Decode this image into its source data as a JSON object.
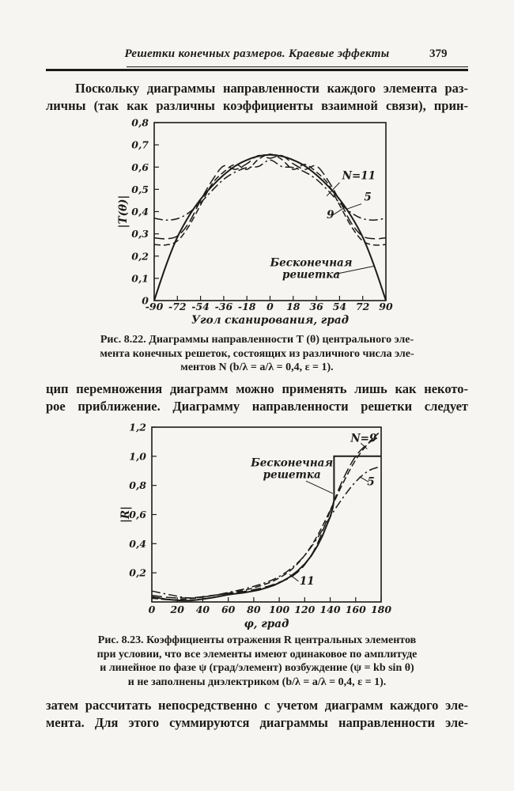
{
  "page": {
    "header": {
      "title": "Решетки конечных размеров. Краевые эффекты",
      "page_number": "379"
    },
    "paragraphs": {
      "p1": [
        "Поскольку диаграммы направленности каждого элемента раз-",
        "личны (так как различны коэффициенты взаимной связи), прин-"
      ],
      "p2": [
        "цип перемножения диаграмм можно применять лишь как некото-",
        "рое приближение. Диаграмму направленности решетки следует"
      ],
      "p3": [
        "затем рассчитать непосредственно с учетом диаграмм каждого эле-",
        "мента. Для этого суммируются диаграммы направленности эле-"
      ]
    },
    "captions": {
      "fig822": [
        "Рис. 8.22. Диаграммы направленности Т (θ) центрального эле-",
        "мента конечных решеток, состоящих из различного числа эле-",
        "ментов N (b/λ = a/λ = 0,4,  ε = 1)."
      ],
      "fig823": [
        "Рис. 8.23. Коэффициенты отражения R центральных элементов",
        "при условии, что все элементы имеют одинаковое по амплитуде",
        "и линейное по фазе ψ (град/элемент) возбуждение (ψ = kb sin θ)",
        "и не заполнены диэлектриком (b/λ = a/λ = 0,4,  ε = 1)."
      ]
    },
    "colors": {
      "ink": "#1d1b18",
      "paper": "#f6f5f1"
    }
  },
  "chart_data": [
    {
      "type": "line",
      "title": "Диаграммы направленности T(θ) центрального элемента (Рис. 8.22)",
      "xlabel": "Угол сканирования, град",
      "ylabel": "|T(θ)|",
      "xlim": [
        -90,
        90
      ],
      "ylim": [
        0,
        0.8
      ],
      "grid": false,
      "legend_position": "inline-labels",
      "x_ticks": [
        {
          "v": -90,
          "label": "-90"
        },
        {
          "v": -72,
          "label": "-72"
        },
        {
          "v": -54,
          "label": "-54"
        },
        {
          "v": -36,
          "label": "-36"
        },
        {
          "v": -18,
          "label": "-18"
        },
        {
          "v": 0,
          "label": "0"
        },
        {
          "v": 18,
          "label": "18"
        },
        {
          "v": 36,
          "label": "36"
        },
        {
          "v": 54,
          "label": "54"
        },
        {
          "v": 72,
          "label": "72"
        },
        {
          "v": 90,
          "label": "90"
        }
      ],
      "y_ticks": [
        {
          "v": 0,
          "label": "0"
        },
        {
          "v": 0.1,
          "label": "0,1"
        },
        {
          "v": 0.2,
          "label": "0,2"
        },
        {
          "v": 0.3,
          "label": "0,3"
        },
        {
          "v": 0.4,
          "label": "0,4"
        },
        {
          "v": 0.5,
          "label": "0,5"
        },
        {
          "v": 0.6,
          "label": "0,6"
        },
        {
          "v": 0.7,
          "label": "0,7"
        },
        {
          "v": 0.8,
          "label": "0,8"
        }
      ],
      "series": [
        {
          "name": "Бесконечная решетка",
          "style": "solid",
          "smooth": true,
          "points": [
            [
              -90,
              0
            ],
            [
              -81,
              0.155
            ],
            [
              -72,
              0.285
            ],
            [
              -63,
              0.38
            ],
            [
              -54,
              0.455
            ],
            [
              -45,
              0.515
            ],
            [
              -36,
              0.565
            ],
            [
              -27,
              0.605
            ],
            [
              -18,
              0.632
            ],
            [
              -9,
              0.649
            ],
            [
              0,
              0.655
            ],
            [
              9,
              0.649
            ],
            [
              18,
              0.632
            ],
            [
              27,
              0.605
            ],
            [
              36,
              0.565
            ],
            [
              45,
              0.515
            ],
            [
              54,
              0.455
            ],
            [
              63,
              0.38
            ],
            [
              72,
              0.285
            ],
            [
              81,
              0.155
            ],
            [
              90,
              0
            ]
          ]
        },
        {
          "name": "N=5",
          "style": "dashdot",
          "smooth": true,
          "points": [
            [
              -90,
              0.37
            ],
            [
              -81,
              0.362
            ],
            [
              -72,
              0.368
            ],
            [
              -63,
              0.395
            ],
            [
              -54,
              0.44
            ],
            [
              -45,
              0.495
            ],
            [
              -36,
              0.545
            ],
            [
              -27,
              0.578
            ],
            [
              -18,
              0.598
            ],
            [
              -9,
              0.603
            ],
            [
              0,
              0.632
            ],
            [
              9,
              0.603
            ],
            [
              18,
              0.598
            ],
            [
              27,
              0.578
            ],
            [
              36,
              0.545
            ],
            [
              45,
              0.495
            ],
            [
              54,
              0.44
            ],
            [
              63,
              0.395
            ],
            [
              72,
              0.368
            ],
            [
              81,
              0.362
            ],
            [
              90,
              0.37
            ]
          ]
        },
        {
          "name": "N=9",
          "style": "longdash",
          "smooth": true,
          "points": [
            [
              -90,
              0.282
            ],
            [
              -81,
              0.278
            ],
            [
              -72,
              0.29
            ],
            [
              -63,
              0.35
            ],
            [
              -54,
              0.45
            ],
            [
              -45,
              0.54
            ],
            [
              -36,
              0.605
            ],
            [
              -27,
              0.59
            ],
            [
              -18,
              0.615
            ],
            [
              -9,
              0.652
            ],
            [
              0,
              0.64
            ],
            [
              9,
              0.652
            ],
            [
              18,
              0.615
            ],
            [
              27,
              0.59
            ],
            [
              36,
              0.605
            ],
            [
              45,
              0.54
            ],
            [
              54,
              0.45
            ],
            [
              63,
              0.35
            ],
            [
              72,
              0.29
            ],
            [
              81,
              0.278
            ],
            [
              90,
              0.282
            ]
          ]
        },
        {
          "name": "N=11",
          "style": "dash",
          "smooth": true,
          "points": [
            [
              -90,
              0.252
            ],
            [
              -81,
              0.25
            ],
            [
              -72,
              0.268
            ],
            [
              -63,
              0.335
            ],
            [
              -54,
              0.43
            ],
            [
              -45,
              0.525
            ],
            [
              -36,
              0.578
            ],
            [
              -27,
              0.612
            ],
            [
              -18,
              0.59
            ],
            [
              -9,
              0.635
            ],
            [
              0,
              0.658
            ],
            [
              9,
              0.635
            ],
            [
              18,
              0.59
            ],
            [
              27,
              0.612
            ],
            [
              36,
              0.578
            ],
            [
              45,
              0.525
            ],
            [
              54,
              0.43
            ],
            [
              63,
              0.335
            ],
            [
              72,
              0.268
            ],
            [
              81,
              0.25
            ],
            [
              90,
              0.252
            ]
          ]
        }
      ],
      "annotations": [
        {
          "lines": [
            "N=11"
          ],
          "x": 56,
          "y": 0.545,
          "anchor": "start",
          "leader": [
            [
              54,
              0.53
            ],
            [
              44,
              0.47
            ]
          ]
        },
        {
          "lines": [
            "5"
          ],
          "x": 73,
          "y": 0.45,
          "anchor": "start",
          "leader": [
            [
              71,
              0.435
            ],
            [
              59,
              0.41
            ]
          ]
        },
        {
          "lines": [
            "9"
          ],
          "x": 44,
          "y": 0.37,
          "anchor": "start",
          "leader": [
            [
              48,
              0.382
            ],
            [
              57,
              0.415
            ]
          ]
        },
        {
          "lines": [
            "Бесконечная",
            "решетка"
          ],
          "x": 32,
          "y": 0.155,
          "anchor": "middle",
          "leader": [
            [
              50,
              0.118
            ],
            [
              81,
              0.155
            ]
          ]
        }
      ]
    },
    {
      "type": "line",
      "title": "Коэффициенты отражения R центральных элементов (Рис. 8.23)",
      "xlabel": "φ, град",
      "ylabel": "|R|",
      "xlim": [
        0,
        180
      ],
      "ylim": [
        0,
        1.2
      ],
      "grid": false,
      "legend_position": "inline-labels",
      "x_ticks": [
        {
          "v": 0,
          "label": "0"
        },
        {
          "v": 20,
          "label": "20"
        },
        {
          "v": 40,
          "label": "40"
        },
        {
          "v": 60,
          "label": "60"
        },
        {
          "v": 80,
          "label": "80"
        },
        {
          "v": 100,
          "label": "100"
        },
        {
          "v": 120,
          "label": "120"
        },
        {
          "v": 140,
          "label": "140"
        },
        {
          "v": 160,
          "label": "160"
        },
        {
          "v": 180,
          "label": "180"
        }
      ],
      "y_ticks": [
        {
          "v": 0.2,
          "label": "0,2"
        },
        {
          "v": 0.4,
          "label": "0,4"
        },
        {
          "v": 0.6,
          "label": "0,6"
        },
        {
          "v": 0.8,
          "label": "0,8"
        },
        {
          "v": 1.0,
          "label": "1,0"
        },
        {
          "v": 1.2,
          "label": "1,2"
        }
      ],
      "series": [
        {
          "name": "Бесконечная решетка",
          "style": "solid",
          "smooth": false,
          "points": [
            [
              0,
              0.035
            ],
            [
              6,
              0.026
            ],
            [
              12,
              0.018
            ],
            [
              18,
              0.013
            ],
            [
              24,
              0.01
            ],
            [
              30,
              0.01
            ],
            [
              36,
              0.015
            ],
            [
              42,
              0.022
            ],
            [
              48,
              0.03
            ],
            [
              54,
              0.04
            ],
            [
              60,
              0.05
            ],
            [
              66,
              0.057
            ],
            [
              72,
              0.063
            ],
            [
              78,
              0.072
            ],
            [
              84,
              0.082
            ],
            [
              90,
              0.098
            ],
            [
              96,
              0.115
            ],
            [
              102,
              0.14
            ],
            [
              108,
              0.17
            ],
            [
              114,
              0.21
            ],
            [
              120,
              0.26
            ],
            [
              125,
              0.315
            ],
            [
              130,
              0.385
            ],
            [
              134,
              0.455
            ],
            [
              137,
              0.52
            ],
            [
              140,
              0.585
            ],
            [
              142,
              0.645
            ],
            [
              143,
              0.7
            ],
            [
              143,
              1.0
            ],
            [
              180,
              1.0
            ]
          ]
        },
        {
          "name": "N=9",
          "style": "dash",
          "smooth": true,
          "points": [
            [
              0,
              0.025
            ],
            [
              15,
              0.015
            ],
            [
              30,
              0.022
            ],
            [
              45,
              0.04
            ],
            [
              60,
              0.06
            ],
            [
              75,
              0.085
            ],
            [
              90,
              0.125
            ],
            [
              100,
              0.165
            ],
            [
              110,
              0.225
            ],
            [
              120,
              0.32
            ],
            [
              130,
              0.455
            ],
            [
              140,
              0.63
            ],
            [
              150,
              0.815
            ],
            [
              160,
              0.975
            ],
            [
              170,
              1.09
            ],
            [
              178,
              1.16
            ]
          ]
        },
        {
          "name": "N=11",
          "style": "longdash",
          "smooth": true,
          "points": [
            [
              0,
              0.045
            ],
            [
              15,
              0.03
            ],
            [
              30,
              0.028
            ],
            [
              45,
              0.042
            ],
            [
              60,
              0.058
            ],
            [
              75,
              0.075
            ],
            [
              90,
              0.105
            ],
            [
              100,
              0.135
            ],
            [
              110,
              0.175
            ],
            [
              120,
              0.255
            ],
            [
              130,
              0.4
            ],
            [
              140,
              0.625
            ],
            [
              150,
              0.84
            ],
            [
              160,
              1.0
            ],
            [
              170,
              1.09
            ],
            [
              178,
              1.13
            ]
          ]
        },
        {
          "name": "N=5",
          "style": "dashdot",
          "smooth": true,
          "points": [
            [
              0,
              0.075
            ],
            [
              15,
              0.048
            ],
            [
              30,
              0.027
            ],
            [
              45,
              0.04
            ],
            [
              60,
              0.065
            ],
            [
              75,
              0.095
            ],
            [
              90,
              0.135
            ],
            [
              100,
              0.175
            ],
            [
              110,
              0.235
            ],
            [
              120,
              0.32
            ],
            [
              130,
              0.44
            ],
            [
              140,
              0.585
            ],
            [
              150,
              0.715
            ],
            [
              160,
              0.825
            ],
            [
              170,
              0.9
            ],
            [
              180,
              0.93
            ]
          ]
        }
      ],
      "annotations": [
        {
          "lines": [
            "N=9"
          ],
          "x": 156,
          "y": 1.1,
          "anchor": "start",
          "leader": [
            [
              164,
              1.09
            ],
            [
              169,
              1.05
            ]
          ]
        },
        {
          "lines": [
            "Бесконечная",
            "решетка"
          ],
          "x": 110,
          "y": 0.93,
          "anchor": "middle",
          "leader": [
            [
              121,
              0.83
            ],
            [
              142,
              0.745
            ]
          ]
        },
        {
          "lines": [
            "5"
          ],
          "x": 172,
          "y": 0.8,
          "anchor": "middle",
          "leader": [
            [
              170,
              0.825
            ],
            [
              163,
              0.86
            ]
          ]
        },
        {
          "lines": [
            "11"
          ],
          "x": 116,
          "y": 0.12,
          "anchor": "start",
          "leader": [
            [
              115,
              0.142
            ],
            [
              108,
              0.19
            ]
          ]
        }
      ]
    }
  ]
}
